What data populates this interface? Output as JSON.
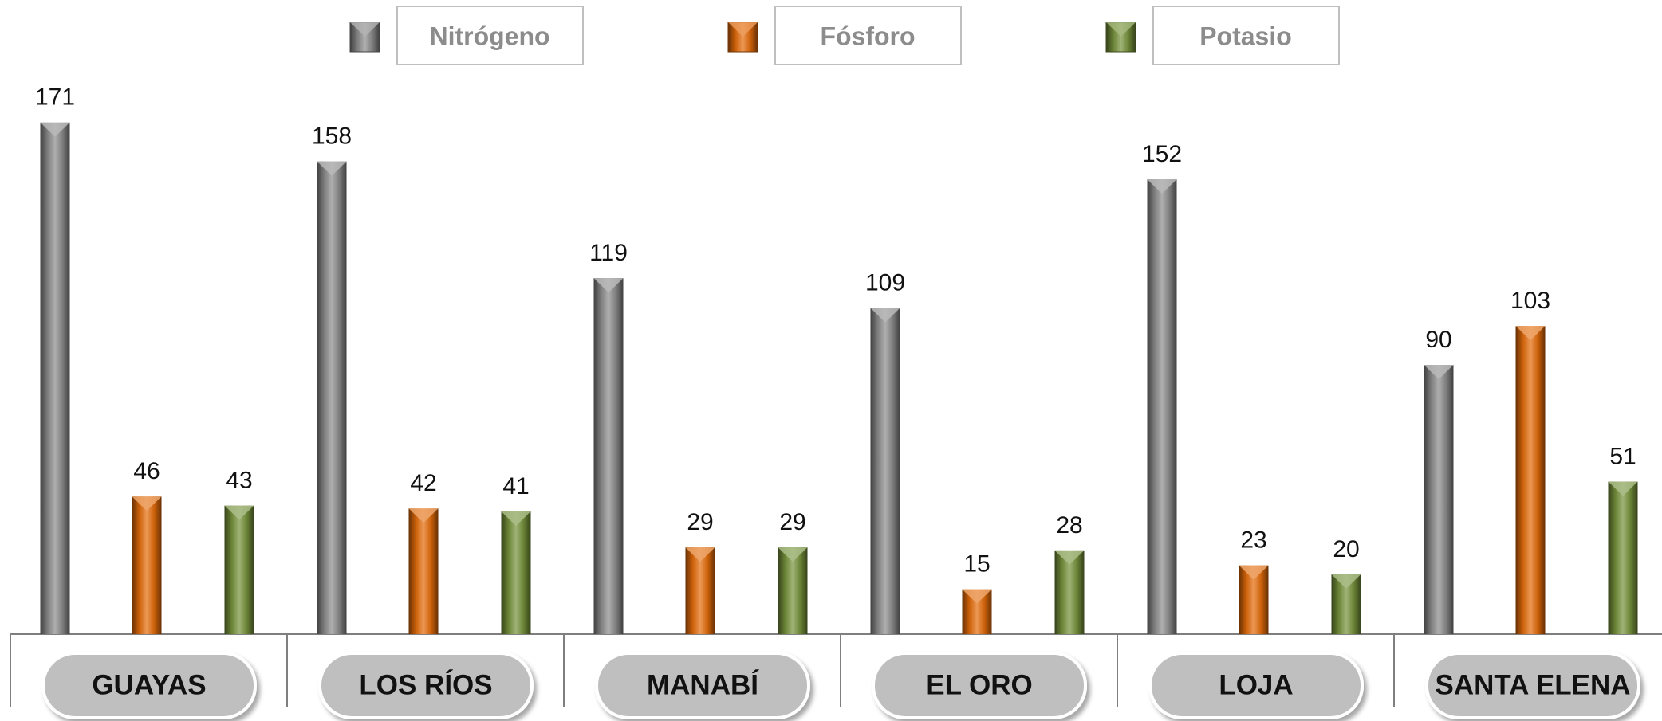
{
  "chart_data": {
    "type": "bar",
    "categories": [
      "GUAYAS",
      "LOS RÍOS",
      "MANABÍ",
      "EL ORO",
      "LOJA",
      "SANTA ELENA"
    ],
    "series": [
      {
        "name": "Nitrógeno",
        "color": "#8c8c8c",
        "values": [
          171,
          158,
          119,
          109,
          152,
          90
        ]
      },
      {
        "name": "Fósforo",
        "color": "#e46c0a",
        "values": [
          46,
          42,
          29,
          15,
          23,
          103
        ]
      },
      {
        "name": "Potasio",
        "color": "#77933c",
        "values": [
          43,
          41,
          29,
          28,
          20,
          51
        ]
      }
    ],
    "ylim": [
      0,
      180
    ],
    "legend": "top"
  }
}
